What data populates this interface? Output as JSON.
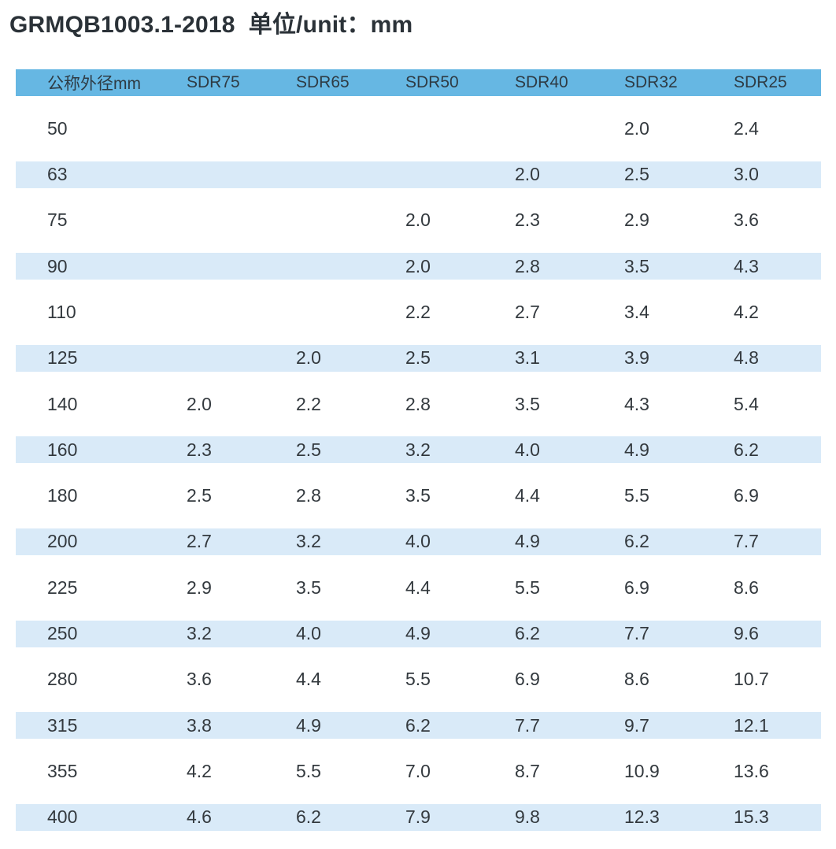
{
  "page": {
    "title": "GRMQB1003.1-2018  单位/unit：mm"
  },
  "colors": {
    "header_bg": "#66b7e3",
    "stripe_bg": "#d9eaf8",
    "title_text": "#2b3238",
    "cell_text": "#33393e"
  },
  "table": {
    "columns": [
      "公称外径mm",
      "SDR75",
      "SDR65",
      "SDR50",
      "SDR40",
      "SDR32",
      "SDR25"
    ],
    "rows": [
      {
        "diameter": "50",
        "values": [
          "",
          "",
          "",
          "",
          "2.0",
          "2.4"
        ]
      },
      {
        "diameter": "63",
        "values": [
          "",
          "",
          "",
          "2.0",
          "2.5",
          "3.0"
        ]
      },
      {
        "diameter": "75",
        "values": [
          "",
          "",
          "2.0",
          "2.3",
          "2.9",
          "3.6"
        ]
      },
      {
        "diameter": "90",
        "values": [
          "",
          "",
          "2.0",
          "2.8",
          "3.5",
          "4.3"
        ]
      },
      {
        "diameter": "110",
        "values": [
          "",
          "",
          "2.2",
          "2.7",
          "3.4",
          "4.2"
        ]
      },
      {
        "diameter": "125",
        "values": [
          "",
          "2.0",
          "2.5",
          "3.1",
          "3.9",
          "4.8"
        ]
      },
      {
        "diameter": "140",
        "values": [
          "2.0",
          "2.2",
          "2.8",
          "3.5",
          "4.3",
          "5.4"
        ]
      },
      {
        "diameter": "160",
        "values": [
          "2.3",
          "2.5",
          "3.2",
          "4.0",
          "4.9",
          "6.2"
        ]
      },
      {
        "diameter": "180",
        "values": [
          "2.5",
          "2.8",
          "3.5",
          "4.4",
          "5.5",
          "6.9"
        ]
      },
      {
        "diameter": "200",
        "values": [
          "2.7",
          "3.2",
          "4.0",
          "4.9",
          "6.2",
          "7.7"
        ]
      },
      {
        "diameter": "225",
        "values": [
          "2.9",
          "3.5",
          "4.4",
          "5.5",
          "6.9",
          "8.6"
        ]
      },
      {
        "diameter": "250",
        "values": [
          "3.2",
          "4.0",
          "4.9",
          "6.2",
          "7.7",
          "9.6"
        ]
      },
      {
        "diameter": "280",
        "values": [
          "3.6",
          "4.4",
          "5.5",
          "6.9",
          "8.6",
          "10.7"
        ]
      },
      {
        "diameter": "315",
        "values": [
          "3.8",
          "4.9",
          "6.2",
          "7.7",
          "9.7",
          "12.1"
        ]
      },
      {
        "diameter": "355",
        "values": [
          "4.2",
          "5.5",
          "7.0",
          "8.7",
          "10.9",
          "13.6"
        ]
      },
      {
        "diameter": "400",
        "values": [
          "4.6",
          "6.2",
          "7.9",
          "9.8",
          "12.3",
          "15.3"
        ]
      }
    ]
  }
}
